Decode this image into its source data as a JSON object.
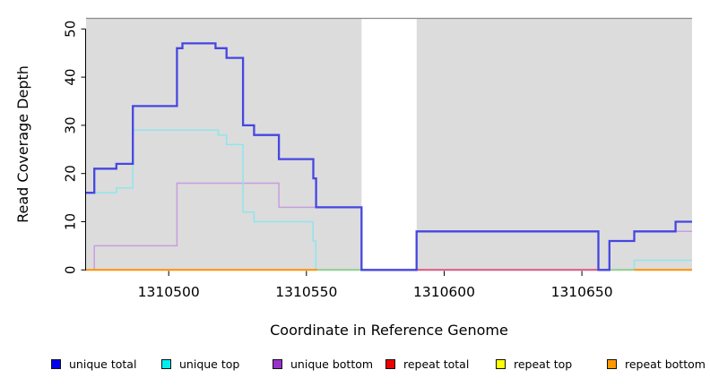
{
  "chart_data": {
    "type": "line",
    "subtype": "step-coverage-plot",
    "title": "",
    "xlabel": "Coordinate in Reference Genome",
    "ylabel": "Read Coverage Depth",
    "xlim": [
      1310470,
      1310690
    ],
    "ylim": [
      0,
      52
    ],
    "x_ticks": [
      1310500,
      1310550,
      1310600,
      1310650
    ],
    "y_ticks": [
      0,
      10,
      20,
      30,
      40,
      50
    ],
    "grid": "off",
    "legend_position": "bottom",
    "plot_bg_color": "#DCDCDC",
    "gap_region": {
      "from": 1310570,
      "to": 1310590,
      "color": "#FFFFFF"
    },
    "series": [
      {
        "name": "unique total",
        "legend_color": "#0000EE",
        "line_color": "#4646E2",
        "line_width": 2.3,
        "steps": [
          [
            1310470,
            16
          ],
          [
            1310473,
            21
          ],
          [
            1310481,
            22
          ],
          [
            1310487,
            34
          ],
          [
            1310503,
            46
          ],
          [
            1310505,
            47
          ],
          [
            1310517,
            46
          ],
          [
            1310521,
            44
          ],
          [
            1310527,
            30
          ],
          [
            1310531,
            28
          ],
          [
            1310540,
            23
          ],
          [
            1310552.5,
            19
          ],
          [
            1310553.5,
            13
          ],
          [
            1310570,
            0
          ],
          [
            1310590,
            8
          ],
          [
            1310656,
            0
          ],
          [
            1310660,
            6
          ],
          [
            1310669,
            8
          ],
          [
            1310684,
            10
          ]
        ]
      },
      {
        "name": "unique top",
        "legend_color": "#00EEEE",
        "line_color": "#8FE5EC",
        "line_width": 1.5,
        "steps": [
          [
            1310470,
            16
          ],
          [
            1310481,
            17
          ],
          [
            1310487,
            29
          ],
          [
            1310518,
            28
          ],
          [
            1310521,
            26
          ],
          [
            1310527,
            12
          ],
          [
            1310531,
            10
          ],
          [
            1310552.4,
            6
          ],
          [
            1310553.4,
            0
          ],
          [
            1310669,
            2
          ]
        ]
      },
      {
        "name": "unique bottom",
        "legend_color": "#9932CC",
        "line_color": "#C79EDE",
        "line_width": 1.5,
        "steps": [
          [
            1310470,
            0
          ],
          [
            1310473,
            5
          ],
          [
            1310503,
            18
          ],
          [
            1310540,
            13
          ],
          [
            1310570,
            0
          ],
          [
            1310660,
            6
          ],
          [
            1310669,
            8
          ]
        ]
      },
      {
        "name": "repeat total",
        "legend_color": "#EE0000",
        "line_color": "#DB5880",
        "line_width": 1.8,
        "steps": [
          [
            1310470,
            0
          ]
        ]
      },
      {
        "name": "repeat top",
        "legend_color": "#FFFF00",
        "line_color": "#FFFF00",
        "line_width": 1.8,
        "steps": [
          [
            1310470,
            0
          ]
        ]
      },
      {
        "name": "repeat bottom",
        "legend_color": "#FF9900",
        "line_color": "#FF9100",
        "line_width": 1.8,
        "steps": [
          [
            1310470,
            0
          ]
        ]
      }
    ],
    "baseline_segments": [
      {
        "from": 1310470,
        "to": 1310554,
        "color": "#FF9100"
      },
      {
        "from": 1310554,
        "to": 1310570,
        "color": "#8FCE8F"
      },
      {
        "from": 1310590,
        "to": 1310656,
        "color": "#DB5880"
      },
      {
        "from": 1310660,
        "to": 1310669,
        "color": "#8FCE8F"
      },
      {
        "from": 1310669,
        "to": 1310690,
        "color": "#FF9100"
      }
    ],
    "axis_color": "#000000",
    "top_border_color": "#8C8C8C"
  }
}
